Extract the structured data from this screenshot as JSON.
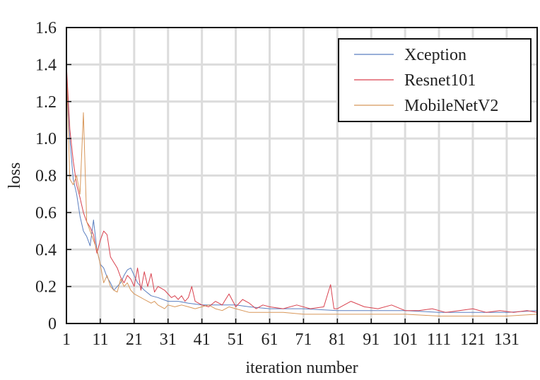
{
  "chart_data": {
    "type": "line",
    "title": "",
    "xlabel": "iteration number",
    "ylabel": "loss",
    "xlim": [
      1,
      140
    ],
    "ylim": [
      0,
      1.6
    ],
    "xticks": [
      1,
      11,
      21,
      31,
      41,
      51,
      61,
      71,
      81,
      91,
      101,
      111,
      121,
      131
    ],
    "xtick_labels": [
      "1",
      "11",
      "21",
      "31",
      "41",
      "51",
      "61",
      "71",
      "81",
      "91",
      "101",
      "111",
      "121",
      "131"
    ],
    "yticks": [
      0,
      0.2,
      0.4,
      0.6,
      0.8,
      1.0,
      1.2,
      1.4,
      1.6
    ],
    "ytick_labels": [
      "0",
      "0.2",
      "0.4",
      "0.6",
      "0.8",
      "1.0",
      "1.2",
      "1.4",
      "1.6"
    ],
    "grid": true,
    "legend_position": "top-right",
    "series": [
      {
        "name": "Xception",
        "color": "#5b7fc0",
        "x": [
          1,
          2,
          3,
          4,
          5,
          6,
          7,
          8,
          9,
          10,
          11,
          12,
          13,
          14,
          15,
          16,
          17,
          18,
          19,
          20,
          22,
          24,
          26,
          28,
          31,
          34,
          37,
          41,
          45,
          51,
          55,
          61,
          71,
          81,
          91,
          101,
          111,
          121,
          131,
          140
        ],
        "y": [
          1.35,
          1.0,
          0.78,
          0.7,
          0.58,
          0.5,
          0.47,
          0.42,
          0.56,
          0.4,
          0.32,
          0.3,
          0.25,
          0.22,
          0.18,
          0.2,
          0.22,
          0.26,
          0.29,
          0.3,
          0.22,
          0.18,
          0.15,
          0.14,
          0.12,
          0.12,
          0.11,
          0.1,
          0.1,
          0.1,
          0.09,
          0.08,
          0.08,
          0.07,
          0.07,
          0.07,
          0.06,
          0.06,
          0.06,
          0.07
        ]
      },
      {
        "name": "Resnet101",
        "color": "#d9414e",
        "x": [
          1,
          2,
          3,
          4,
          5,
          6,
          7,
          8,
          9,
          10,
          11,
          12,
          13,
          14,
          15,
          16,
          17,
          18,
          19,
          20,
          21,
          22,
          23,
          24,
          25,
          26,
          27,
          28,
          29,
          30,
          31,
          32,
          33,
          34,
          35,
          36,
          37,
          38,
          39,
          40,
          41,
          43,
          45,
          47,
          49,
          51,
          53,
          55,
          57,
          59,
          61,
          65,
          69,
          73,
          77,
          79,
          80,
          81,
          85,
          89,
          93,
          97,
          101,
          105,
          109,
          113,
          117,
          121,
          125,
          129,
          133,
          137,
          140
        ],
        "y": [
          1.4,
          1.05,
          0.88,
          0.75,
          0.68,
          0.6,
          0.55,
          0.52,
          0.48,
          0.38,
          0.45,
          0.5,
          0.48,
          0.36,
          0.33,
          0.3,
          0.25,
          0.22,
          0.26,
          0.24,
          0.2,
          0.3,
          0.18,
          0.28,
          0.2,
          0.27,
          0.17,
          0.2,
          0.19,
          0.18,
          0.16,
          0.14,
          0.15,
          0.13,
          0.15,
          0.12,
          0.14,
          0.2,
          0.12,
          0.11,
          0.1,
          0.09,
          0.12,
          0.1,
          0.16,
          0.09,
          0.13,
          0.11,
          0.08,
          0.1,
          0.09,
          0.08,
          0.1,
          0.08,
          0.09,
          0.21,
          0.08,
          0.08,
          0.12,
          0.09,
          0.08,
          0.1,
          0.07,
          0.07,
          0.08,
          0.06,
          0.07,
          0.08,
          0.06,
          0.07,
          0.06,
          0.07,
          0.06
        ]
      },
      {
        "name": "MobileNetV2",
        "color": "#d8975a",
        "x": [
          1,
          2,
          3,
          4,
          5,
          6,
          7,
          8,
          9,
          10,
          11,
          12,
          13,
          14,
          15,
          16,
          17,
          18,
          19,
          20,
          21,
          22,
          23,
          24,
          25,
          26,
          27,
          28,
          29,
          30,
          31,
          33,
          35,
          37,
          39,
          41,
          43,
          45,
          47,
          49,
          51,
          55,
          61,
          65,
          71,
          75,
          81,
          85,
          91,
          101,
          111,
          121,
          131,
          140
        ],
        "y": [
          1.38,
          0.78,
          0.75,
          0.8,
          0.7,
          1.14,
          0.55,
          0.5,
          0.45,
          0.4,
          0.32,
          0.22,
          0.26,
          0.2,
          0.18,
          0.17,
          0.24,
          0.2,
          0.22,
          0.18,
          0.16,
          0.15,
          0.14,
          0.13,
          0.12,
          0.11,
          0.12,
          0.1,
          0.09,
          0.08,
          0.1,
          0.09,
          0.1,
          0.09,
          0.08,
          0.09,
          0.1,
          0.08,
          0.07,
          0.09,
          0.08,
          0.06,
          0.06,
          0.06,
          0.05,
          0.05,
          0.05,
          0.05,
          0.05,
          0.05,
          0.04,
          0.04,
          0.04,
          0.05
        ]
      }
    ]
  }
}
